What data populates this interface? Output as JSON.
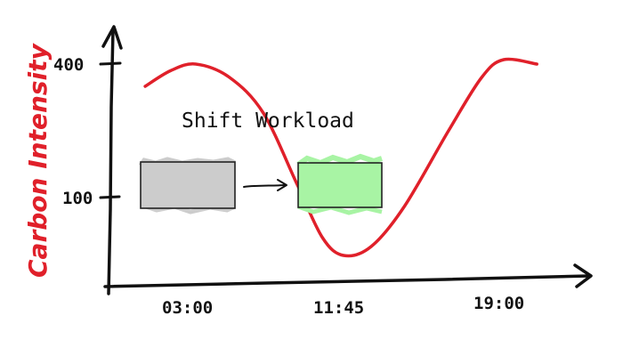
{
  "colors": {
    "axis": "#111111",
    "curve": "#e0202a",
    "ylabel": "#e0202a",
    "original_block_fill": "#cccccc",
    "shifted_block_fill": "#a8f4a4"
  },
  "chart_data": {
    "type": "line",
    "title": "",
    "xlabel": "",
    "ylabel": "Carbon Intensity",
    "x_tick_labels": [
      "03:00",
      "11:45",
      "19:00"
    ],
    "y_tick_labels": [
      "100",
      "400"
    ],
    "y_tick_values": [
      100,
      400
    ],
    "series": [
      {
        "color": "#e0202a",
        "points": [
          {
            "x": "00:00",
            "y": 350
          },
          {
            "x": "01:30",
            "y": 385
          },
          {
            "x": "03:00",
            "y": 400
          },
          {
            "x": "05:00",
            "y": 370
          },
          {
            "x": "07:00",
            "y": 290
          },
          {
            "x": "09:00",
            "y": 130
          },
          {
            "x": "10:30",
            "y": 10
          },
          {
            "x": "11:45",
            "y": -30
          },
          {
            "x": "13:00",
            "y": -10
          },
          {
            "x": "14:30",
            "y": 80
          },
          {
            "x": "16:30",
            "y": 250
          },
          {
            "x": "18:00",
            "y": 370
          },
          {
            "x": "19:00",
            "y": 410
          },
          {
            "x": "20:30",
            "y": 400
          }
        ]
      }
    ],
    "annotation": {
      "text": "Shift Workload"
    },
    "grid": false
  }
}
